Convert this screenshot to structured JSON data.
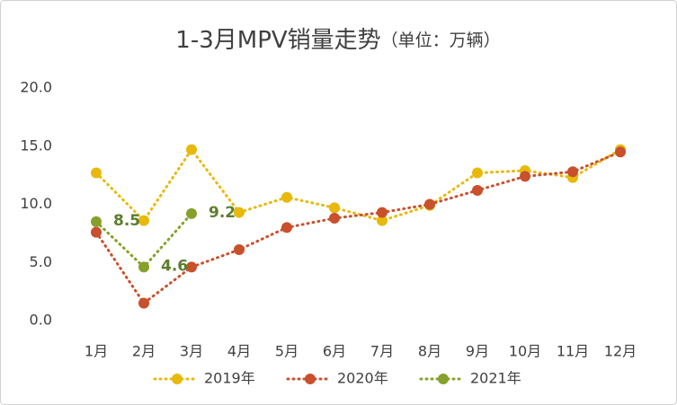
{
  "chart_data": {
    "type": "line",
    "title": "1-3月MPV销量走势",
    "subtitle": "（单位：万辆）",
    "categories": [
      "1月",
      "2月",
      "3月",
      "4月",
      "5月",
      "6月",
      "7月",
      "8月",
      "9月",
      "10月",
      "11月",
      "12月"
    ],
    "series": [
      {
        "name": "2019年",
        "color": "#e8b90c",
        "values": [
          12.7,
          8.6,
          14.7,
          9.3,
          10.6,
          9.7,
          8.6,
          9.9,
          12.7,
          12.9,
          12.3,
          14.7
        ]
      },
      {
        "name": "2020年",
        "color": "#c9502c",
        "values": [
          7.6,
          1.5,
          4.6,
          6.1,
          8.0,
          8.8,
          9.3,
          10.0,
          11.2,
          12.4,
          12.8,
          14.5
        ]
      },
      {
        "name": "2021年",
        "color": "#86a12a",
        "values": [
          8.5,
          4.6,
          9.2,
          null,
          null,
          null,
          null,
          null,
          null,
          null,
          null,
          null
        ],
        "data_labels": true,
        "label_color": "#5b7d2c"
      }
    ],
    "ylim": [
      0,
      20
    ],
    "yticks": [
      {
        "value": 0,
        "label": "0.0"
      },
      {
        "value": 5,
        "label": "5.0"
      },
      {
        "value": 10,
        "label": "10.0"
      },
      {
        "value": 15,
        "label": "15.0"
      },
      {
        "value": 20,
        "label": "20.0"
      }
    ],
    "grid": false,
    "legend": "bottom"
  }
}
